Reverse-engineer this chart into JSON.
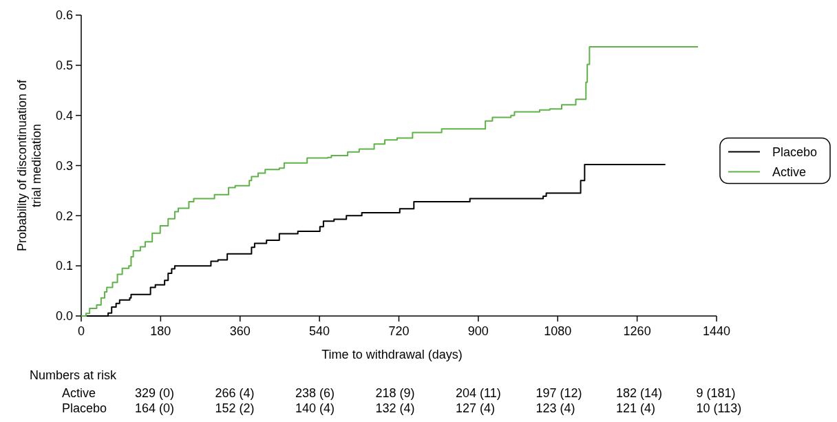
{
  "chart_data": {
    "type": "step",
    "xlabel": "Time to withdrawal (days)",
    "ylabel": "Probability of discontinuation of trial medication",
    "xlim": [
      0,
      1440
    ],
    "xticks": [
      0,
      180,
      360,
      540,
      720,
      900,
      1080,
      1260,
      1440
    ],
    "ylim": [
      0,
      0.6
    ],
    "yticks": [
      {
        "value": 0,
        "label": "0.0"
      },
      0.1,
      0.2,
      0.3,
      0.4,
      0.5,
      0.6
    ],
    "legend": "right",
    "grid": false,
    "marker": "none",
    "series": [
      {
        "name": "Placebo",
        "color": "#000000",
        "x": [
          0,
          61,
          69,
          79,
          87,
          110,
          113,
          157,
          168,
          189,
          197,
          205,
          212,
          294,
          310,
          331,
          386,
          393,
          420,
          449,
          491,
          541,
          549,
          573,
          601,
          636,
          722,
          754,
          881,
          1047,
          1054,
          1132,
          1141,
          1324
        ],
        "values": [
          0,
          0.006,
          0.018,
          0.025,
          0.032,
          0.036,
          0.043,
          0.057,
          0.062,
          0.071,
          0.085,
          0.094,
          0.1,
          0.109,
          0.112,
          0.124,
          0.137,
          0.145,
          0.151,
          0.164,
          0.169,
          0.178,
          0.189,
          0.193,
          0.2,
          0.206,
          0.214,
          0.228,
          0.234,
          0.239,
          0.245,
          0.27,
          0.302,
          0.302
        ]
      },
      {
        "name": "Active",
        "color": "#5db346",
        "x": [
          0,
          11,
          19,
          35,
          45,
          53,
          58,
          71,
          82,
          93,
          108,
          113,
          118,
          134,
          145,
          161,
          179,
          197,
          212,
          220,
          244,
          255,
          302,
          334,
          349,
          381,
          386,
          401,
          417,
          449,
          460,
          512,
          559,
          567,
          604,
          630,
          664,
          688,
          716,
          751,
          817,
          916,
          932,
          974,
          982,
          1039,
          1062,
          1089,
          1121,
          1144,
          1147,
          1152,
          1398
        ],
        "values": [
          0,
          0.005,
          0.015,
          0.022,
          0.036,
          0.048,
          0.057,
          0.067,
          0.083,
          0.095,
          0.1,
          0.118,
          0.13,
          0.138,
          0.148,
          0.165,
          0.18,
          0.194,
          0.208,
          0.215,
          0.228,
          0.234,
          0.242,
          0.256,
          0.26,
          0.27,
          0.278,
          0.285,
          0.292,
          0.295,
          0.305,
          0.315,
          0.316,
          0.32,
          0.327,
          0.333,
          0.343,
          0.351,
          0.355,
          0.366,
          0.373,
          0.389,
          0.396,
          0.4,
          0.407,
          0.411,
          0.413,
          0.421,
          0.432,
          0.466,
          0.502,
          0.537,
          0.537
        ]
      }
    ],
    "annotations": [
      "Numbers at risk",
      "Active",
      "329 (0)",
      "266 (4)",
      "238 (6)",
      "218 (9)",
      "204 (11)",
      "197 (12)",
      "182 (14)",
      "9 (181)",
      "Placebo",
      "164 (0)",
      "152 (2)",
      "140 (4)",
      "132 (4)",
      "127 (4)",
      "123 (4)",
      "121 (4)",
      "10 (113)"
    ]
  }
}
